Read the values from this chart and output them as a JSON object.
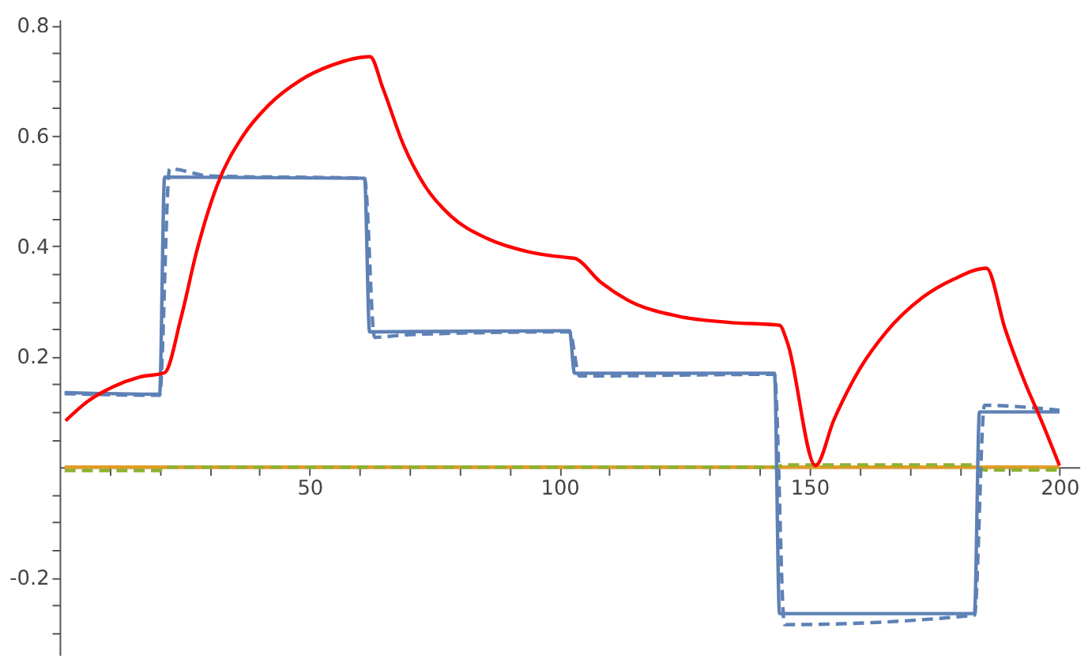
{
  "chart_data": {
    "type": "line",
    "xlim": [
      0,
      204
    ],
    "ylim": [
      -0.34,
      0.81
    ],
    "xticks": [
      {
        "value": 10,
        "label": null
      },
      {
        "value": 20,
        "label": null
      },
      {
        "value": 30,
        "label": null
      },
      {
        "value": 40,
        "label": null
      },
      50,
      {
        "value": 60,
        "label": null
      },
      {
        "value": 70,
        "label": null
      },
      {
        "value": 80,
        "label": null
      },
      {
        "value": 90,
        "label": null
      },
      100,
      {
        "value": 110,
        "label": null
      },
      {
        "value": 120,
        "label": null
      },
      {
        "value": 130,
        "label": null
      },
      {
        "value": 140,
        "label": null
      },
      150,
      {
        "value": 160,
        "label": null
      },
      {
        "value": 170,
        "label": null
      },
      {
        "value": 180,
        "label": null
      },
      {
        "value": 190,
        "label": null
      },
      200
    ],
    "yticks": [
      {
        "value": -0.3,
        "label": null
      },
      {
        "value": -0.25,
        "label": null
      },
      -0.2,
      {
        "value": -0.15,
        "label": null
      },
      {
        "value": -0.1,
        "label": null
      },
      {
        "value": -0.05,
        "label": null
      },
      {
        "value": 0.05,
        "label": null
      },
      {
        "value": 0.1,
        "label": null
      },
      {
        "value": 0.15,
        "label": null
      },
      0.2,
      {
        "value": 0.25,
        "label": null
      },
      {
        "value": 0.3,
        "label": null
      },
      {
        "value": 0.35,
        "label": null
      },
      0.4,
      {
        "value": 0.45,
        "label": null
      },
      {
        "value": 0.5,
        "label": null
      },
      {
        "value": 0.55,
        "label": null
      },
      0.6,
      {
        "value": 0.65,
        "label": null
      },
      {
        "value": 0.7,
        "label": null
      },
      {
        "value": 0.75,
        "label": null
      },
      0.8
    ],
    "grid": false,
    "series": [
      {
        "color": "#e19c24",
        "line_style": "solid",
        "x": [
          1,
          200
        ],
        "values": [
          0,
          0
        ]
      },
      {
        "color": "#8fb032",
        "line_style": "dashed",
        "x": [
          1,
          20,
          21,
          143,
          145,
          183,
          185,
          200
        ],
        "values": [
          -0.006,
          -0.006,
          0,
          0,
          0.004,
          0.004,
          -0.005,
          -0.005
        ]
      },
      {
        "color": "#5e81b5",
        "line_style": "solid",
        "x": [
          1,
          20,
          21,
          61,
          62,
          102,
          103,
          143,
          144,
          183,
          184,
          200
        ],
        "values": [
          0.135,
          0.132,
          0.525,
          0.523,
          0.245,
          0.247,
          0.17,
          0.17,
          -0.265,
          -0.265,
          0.1,
          0.1
        ]
      },
      {
        "color": "#5e81b5",
        "line_style": "dashed",
        "x": [
          1,
          20,
          22,
          30,
          61,
          63,
          70,
          102,
          104,
          143,
          145,
          183,
          185,
          200
        ],
        "values": [
          0.133,
          0.13,
          0.54,
          0.527,
          0.523,
          0.235,
          0.24,
          0.245,
          0.165,
          0.168,
          -0.285,
          -0.268,
          0.112,
          0.103
        ]
      },
      {
        "color": "#ff0000",
        "line_style": "solid",
        "x": [
          1.2,
          5.6,
          10.8,
          15.9,
          21,
          24.3,
          27.4,
          31.5,
          36.7,
          42,
          48.1,
          54.3,
          62.1,
          64.7,
          68.8,
          73,
          78.2,
          85.5,
          93.7,
          102,
          103,
          108.2,
          113.5,
          123.8,
          134,
          144,
          145.6,
          151.2,
          154.9,
          160.2,
          165.2,
          172.6,
          178.8,
          185.4,
          189.1,
          193.2,
          196.3,
          200
        ],
        "values": [
          0.084,
          0.119,
          0.146,
          0.163,
          0.171,
          0.271,
          0.39,
          0.51,
          0.6,
          0.657,
          0.7,
          0.727,
          0.743,
          0.685,
          0.583,
          0.51,
          0.455,
          0.414,
          0.39,
          0.379,
          0.378,
          0.335,
          0.303,
          0.273,
          0.262,
          0.257,
          0.225,
          0.003,
          0.086,
          0.18,
          0.243,
          0.307,
          0.34,
          0.36,
          0.251,
          0.151,
          0.086,
          0.003
        ]
      }
    ]
  }
}
